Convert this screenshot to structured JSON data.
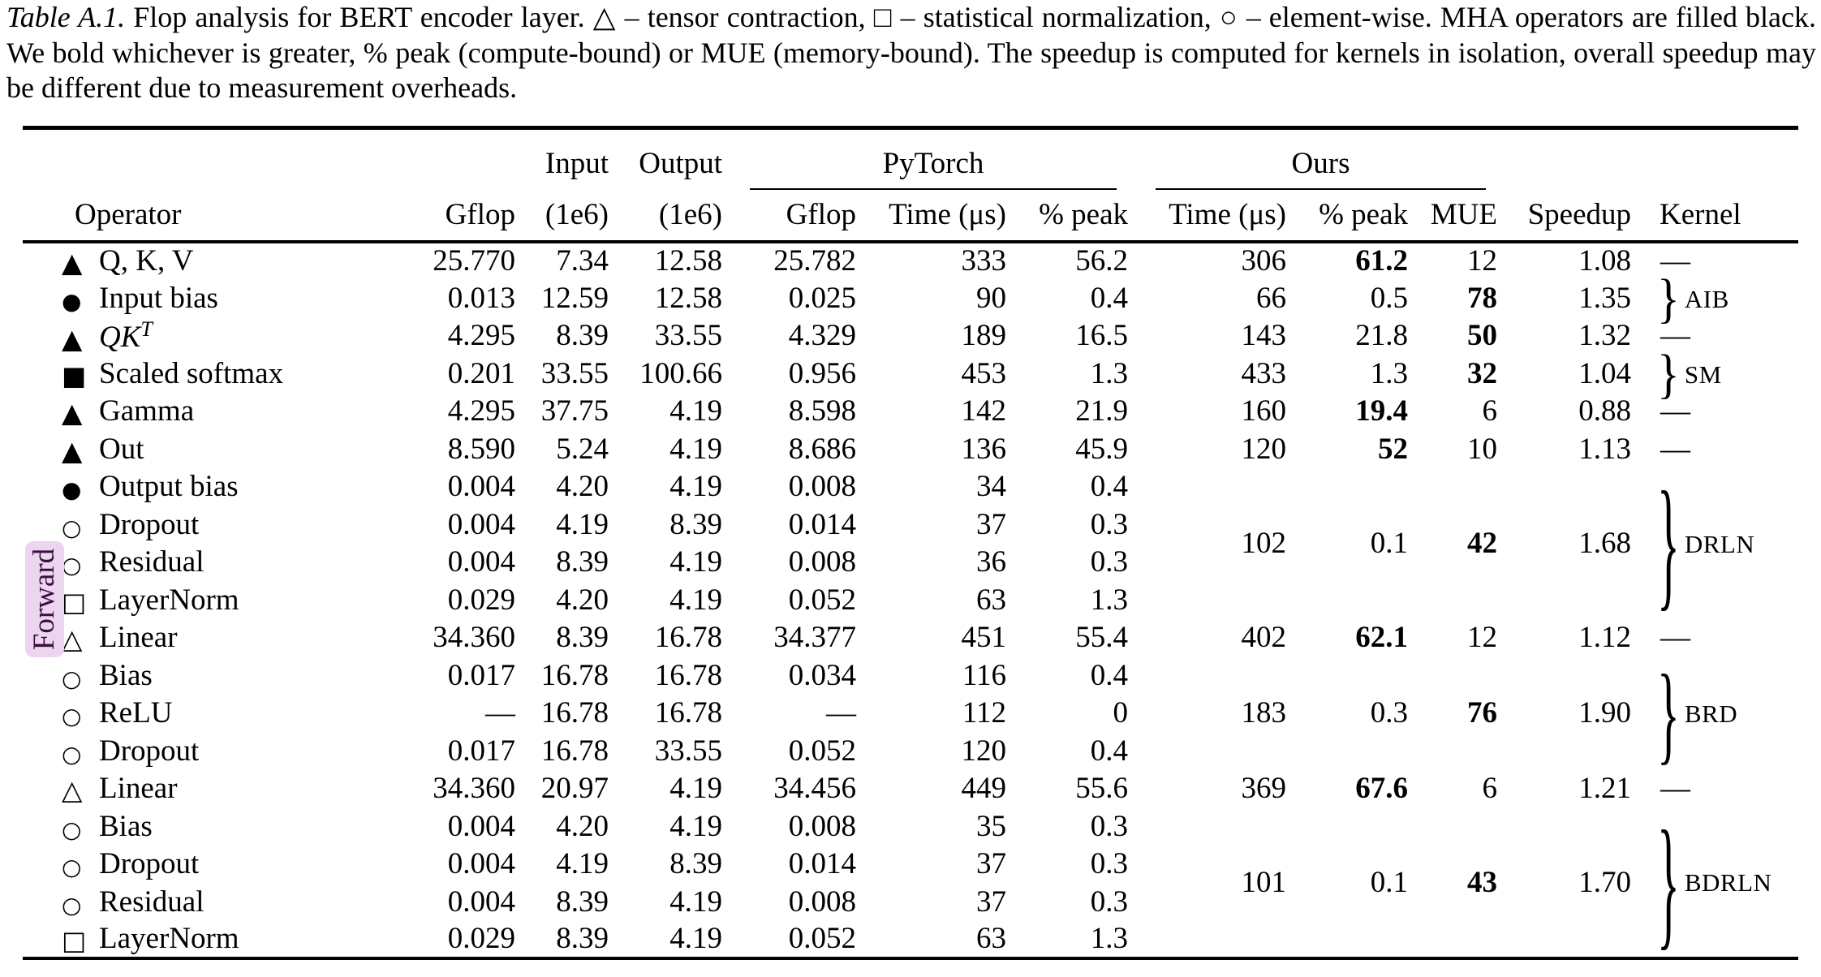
{
  "caption": {
    "label": "Table A.1.",
    "body": " Flop analysis for BERT encoder layer.  △ – tensor contraction, □ – statistical normalization, ○ – element-wise. MHA operators are filled black. We bold whichever is greater, % peak (compute-bound) or MUE (memory-bound). The speedup is computed for kernels in isolation, overall speedup may be different due to measurement overheads."
  },
  "table": {
    "side_label": "Forward",
    "group_headers": {
      "input": "Input",
      "output": "Output",
      "pytorch": "PyTorch",
      "ours": "Ours"
    },
    "headers": {
      "operator": "Operator",
      "gflop": "Gflop",
      "input_unit": "(1e6)",
      "output_unit": "(1e6)",
      "pt_gflop": "Gflop",
      "pt_time": "Time (μs)",
      "pt_peak": "% peak",
      "ours_time": "Time (μs)",
      "ours_peak": "% peak",
      "mue": "MUE",
      "speedup": "Speedup",
      "kernel": "Kernel"
    },
    "rows": [
      {
        "icon": "triangle-filled",
        "operator": "Q, K, V",
        "gflop": "25.770",
        "input": "7.34",
        "output": "12.58",
        "pt": {
          "gflop": "25.782",
          "time": "333",
          "peak": "56.2"
        },
        "ours": {
          "span": 1,
          "time": "306",
          "peak": "61.2",
          "peak_bold": true,
          "mue": "12",
          "mue_bold": false,
          "speedup": "1.08"
        },
        "kernel": {
          "span": 1,
          "type": "dash",
          "label": "—"
        }
      },
      {
        "icon": "circle-filled",
        "operator": "Input bias",
        "gflop": "0.013",
        "input": "12.59",
        "output": "12.58",
        "pt": {
          "gflop": "0.025",
          "time": "90",
          "peak": "0.4"
        },
        "ours": {
          "span": 1,
          "time": "66",
          "peak": "0.5",
          "peak_bold": false,
          "mue": "78",
          "mue_bold": true,
          "speedup": "1.35"
        },
        "kernel": {
          "span": 1,
          "type": "brace",
          "label": "AIB"
        }
      },
      {
        "icon": "triangle-filled",
        "operator": "QK",
        "operator_sup": "T",
        "math": true,
        "gflop": "4.295",
        "input": "8.39",
        "output": "33.55",
        "pt": {
          "gflop": "4.329",
          "time": "189",
          "peak": "16.5"
        },
        "ours": {
          "span": 1,
          "time": "143",
          "peak": "21.8",
          "peak_bold": false,
          "mue": "50",
          "mue_bold": true,
          "speedup": "1.32"
        },
        "kernel": {
          "span": 1,
          "type": "dash",
          "label": "—"
        }
      },
      {
        "icon": "square-filled",
        "operator": "Scaled softmax",
        "gflop": "0.201",
        "input": "33.55",
        "output": "100.66",
        "pt": {
          "gflop": "0.956",
          "time": "453",
          "peak": "1.3"
        },
        "ours": {
          "span": 1,
          "time": "433",
          "peak": "1.3",
          "peak_bold": false,
          "mue": "32",
          "mue_bold": true,
          "speedup": "1.04"
        },
        "kernel": {
          "span": 1,
          "type": "brace",
          "label": "SM"
        }
      },
      {
        "icon": "triangle-filled",
        "operator": "Gamma",
        "gflop": "4.295",
        "input": "37.75",
        "output": "4.19",
        "pt": {
          "gflop": "8.598",
          "time": "142",
          "peak": "21.9"
        },
        "ours": {
          "span": 1,
          "time": "160",
          "peak": "19.4",
          "peak_bold": true,
          "mue": "6",
          "mue_bold": false,
          "speedup": "0.88"
        },
        "kernel": {
          "span": 1,
          "type": "dash",
          "label": "—"
        }
      },
      {
        "icon": "triangle-filled",
        "operator": "Out",
        "gflop": "8.590",
        "input": "5.24",
        "output": "4.19",
        "pt": {
          "gflop": "8.686",
          "time": "136",
          "peak": "45.9"
        },
        "ours": {
          "span": 1,
          "time": "120",
          "peak": "52",
          "peak_bold": true,
          "mue": "10",
          "mue_bold": false,
          "speedup": "1.13"
        },
        "kernel": {
          "span": 1,
          "type": "dash",
          "label": "—"
        }
      },
      {
        "icon": "circle-filled",
        "operator": "Output bias",
        "gflop": "0.004",
        "input": "4.20",
        "output": "4.19",
        "pt": {
          "gflop": "0.008",
          "time": "34",
          "peak": "0.4"
        },
        "ours": {
          "span": 4,
          "time": "102",
          "peak": "0.1",
          "peak_bold": false,
          "mue": "42",
          "mue_bold": true,
          "speedup": "1.68"
        },
        "kernel": {
          "span": 4,
          "type": "brace",
          "label": "DRLN"
        }
      },
      {
        "icon": "circle-open",
        "operator": "Dropout",
        "gflop": "0.004",
        "input": "4.19",
        "output": "8.39",
        "pt": {
          "gflop": "0.014",
          "time": "37",
          "peak": "0.3"
        },
        "ours": "merged",
        "kernel": "merged"
      },
      {
        "icon": "circle-open",
        "operator": "Residual",
        "gflop": "0.004",
        "input": "8.39",
        "output": "4.19",
        "pt": {
          "gflop": "0.008",
          "time": "36",
          "peak": "0.3"
        },
        "ours": "merged",
        "kernel": "merged"
      },
      {
        "icon": "square-open",
        "operator": "LayerNorm",
        "gflop": "0.029",
        "input": "4.20",
        "output": "4.19",
        "pt": {
          "gflop": "0.052",
          "time": "63",
          "peak": "1.3"
        },
        "ours": "merged",
        "kernel": "merged"
      },
      {
        "icon": "triangle-open",
        "operator": "Linear",
        "gflop": "34.360",
        "input": "8.39",
        "output": "16.78",
        "pt": {
          "gflop": "34.377",
          "time": "451",
          "peak": "55.4"
        },
        "ours": {
          "span": 1,
          "time": "402",
          "peak": "62.1",
          "peak_bold": true,
          "mue": "12",
          "mue_bold": false,
          "speedup": "1.12"
        },
        "kernel": {
          "span": 1,
          "type": "dash",
          "label": "—"
        }
      },
      {
        "icon": "circle-open",
        "operator": "Bias",
        "gflop": "0.017",
        "input": "16.78",
        "output": "16.78",
        "pt": {
          "gflop": "0.034",
          "time": "116",
          "peak": "0.4"
        },
        "ours": {
          "span": 3,
          "time": "183",
          "peak": "0.3",
          "peak_bold": false,
          "mue": "76",
          "mue_bold": true,
          "speedup": "1.90"
        },
        "kernel": {
          "span": 3,
          "type": "brace",
          "label": "BRD"
        }
      },
      {
        "icon": "circle-open",
        "operator": "ReLU",
        "gflop": "—",
        "input": "16.78",
        "output": "16.78",
        "pt": {
          "gflop": "—",
          "time": "112",
          "peak": "0"
        },
        "ours": "merged",
        "kernel": "merged"
      },
      {
        "icon": "circle-open",
        "operator": "Dropout",
        "gflop": "0.017",
        "input": "16.78",
        "output": "33.55",
        "pt": {
          "gflop": "0.052",
          "time": "120",
          "peak": "0.4"
        },
        "ours": "merged",
        "kernel": "merged"
      },
      {
        "icon": "triangle-open",
        "operator": "Linear",
        "gflop": "34.360",
        "input": "20.97",
        "output": "4.19",
        "pt": {
          "gflop": "34.456",
          "time": "449",
          "peak": "55.6"
        },
        "ours": {
          "span": 1,
          "time": "369",
          "peak": "67.6",
          "peak_bold": true,
          "mue": "6",
          "mue_bold": false,
          "speedup": "1.21"
        },
        "kernel": {
          "span": 1,
          "type": "dash",
          "label": "—"
        }
      },
      {
        "icon": "circle-open",
        "operator": "Bias",
        "gflop": "0.004",
        "input": "4.20",
        "output": "4.19",
        "pt": {
          "gflop": "0.008",
          "time": "35",
          "peak": "0.3"
        },
        "ours": {
          "span": 4,
          "time": "101",
          "peak": "0.1",
          "peak_bold": false,
          "mue": "43",
          "mue_bold": true,
          "speedup": "1.70"
        },
        "kernel": {
          "span": 4,
          "type": "brace",
          "label": "BDRLN"
        }
      },
      {
        "icon": "circle-open",
        "operator": "Dropout",
        "gflop": "0.004",
        "input": "4.19",
        "output": "8.39",
        "pt": {
          "gflop": "0.014",
          "time": "37",
          "peak": "0.3"
        },
        "ours": "merged",
        "kernel": "merged"
      },
      {
        "icon": "circle-open",
        "operator": "Residual",
        "gflop": "0.004",
        "input": "8.39",
        "output": "4.19",
        "pt": {
          "gflop": "0.008",
          "time": "37",
          "peak": "0.3"
        },
        "ours": "merged",
        "kernel": "merged"
      },
      {
        "icon": "square-open",
        "operator": "LayerNorm",
        "gflop": "0.029",
        "input": "8.39",
        "output": "4.19",
        "pt": {
          "gflop": "0.052",
          "time": "63",
          "peak": "1.3"
        },
        "ours": "merged",
        "kernel": "merged"
      }
    ]
  },
  "colors": {
    "forward_bg": "#ecd5ef",
    "forward_text": "#3a1040",
    "text": "#000000",
    "background": "#ffffff"
  }
}
